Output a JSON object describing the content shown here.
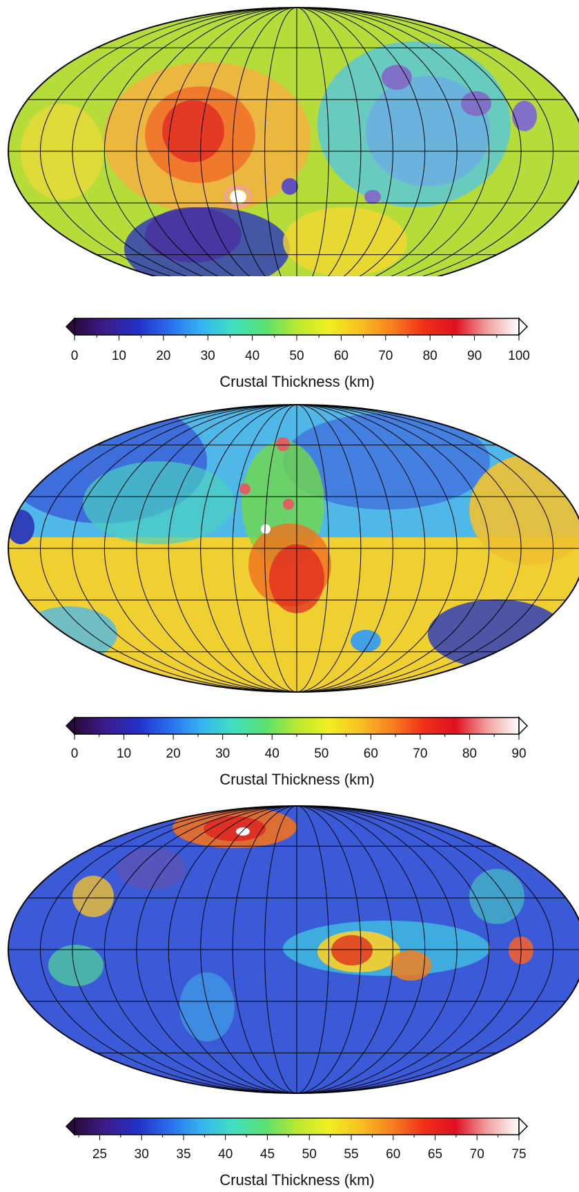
{
  "panels": [
    {
      "colorbar": {
        "label": "Crustal Thickness (km)",
        "min": 0,
        "max": 100,
        "ticks": [
          "0",
          "10",
          "20",
          "30",
          "40",
          "50",
          "60",
          "70",
          "80",
          "90",
          "100"
        ],
        "tick_values": [
          0,
          10,
          20,
          30,
          40,
          50,
          60,
          70,
          80,
          90,
          100
        ],
        "minor_step": 5
      }
    },
    {
      "colorbar": {
        "label": "Crustal Thickness (km)",
        "min": 0,
        "max": 90,
        "ticks": [
          "0",
          "10",
          "20",
          "30",
          "40",
          "50",
          "60",
          "70",
          "80",
          "90"
        ],
        "tick_values": [
          0,
          10,
          20,
          30,
          40,
          50,
          60,
          70,
          80,
          90
        ],
        "minor_step": 5
      }
    },
    {
      "colorbar": {
        "label": "Crustal Thickness (km)",
        "min": 22,
        "max": 75,
        "ticks": [
          "25",
          "30",
          "35",
          "40",
          "45",
          "50",
          "55",
          "60",
          "65",
          "70",
          "75"
        ],
        "tick_values": [
          25,
          30,
          35,
          40,
          45,
          50,
          55,
          60,
          65,
          70,
          75
        ],
        "minor_step": 2.5
      }
    }
  ],
  "colormap": [
    "#2b0a3d",
    "#3b1c8c",
    "#2230c8",
    "#2a6ef0",
    "#35b4f0",
    "#40e0c0",
    "#58e070",
    "#b8e830",
    "#f0f020",
    "#f8c020",
    "#f88020",
    "#f03018",
    "#e01020",
    "#f0a0a0",
    "#ffffff"
  ]
}
